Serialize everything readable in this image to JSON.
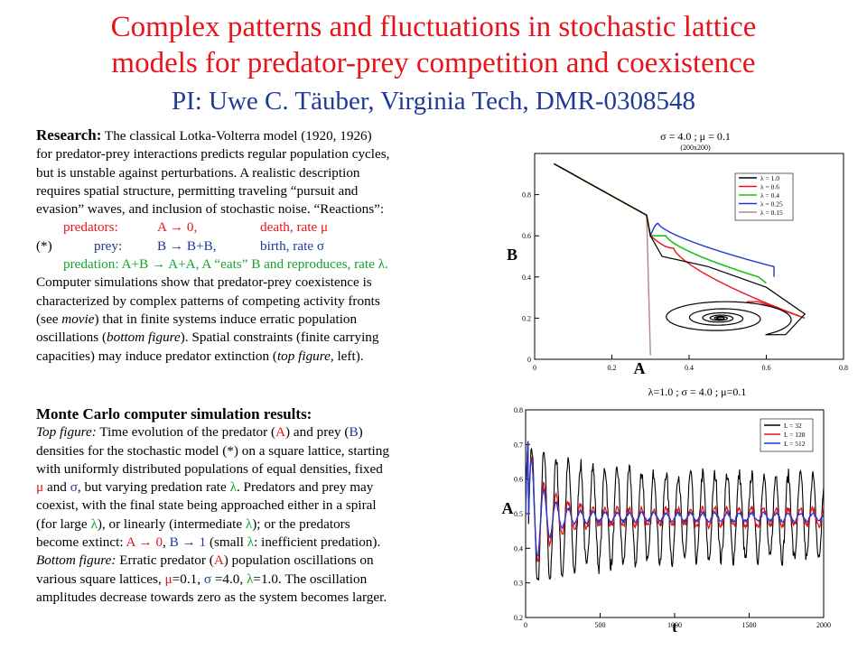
{
  "title": {
    "line1": "Complex patterns and fluctuations in stochastic lattice",
    "line2": "models for predator-prey competition and coexistence",
    "pi": "PI: Uwe C. Täuber, Virginia Tech, DMR-0308548"
  },
  "research": {
    "heading": "Research:",
    "lines": [
      "The classical Lotka-Volterra model (1920, 1926)",
      "for predator-prey interactions predicts regular population cycles,",
      "but is unstable against perturbations. A realistic description",
      "requires spatial structure, permitting traveling “pursuit and",
      "evasion” waves, and inclusion of stochastic noise. “Reactions”:"
    ],
    "reactions": {
      "r1_label": "predators:",
      "r1_eq": "A → 0,",
      "r1_desc": "death, rate μ",
      "r2_marker": "(*)",
      "r2_label": "prey:",
      "r2_eq": "B → B+B,",
      "r2_desc": "birth, rate σ",
      "r3_label": "predation:",
      "r3_eq": "A+B → A+A,",
      "r3_desc_a": "A “eats” B and ",
      "r3_desc_b": "reproduces",
      "r3_desc_c": ", rate λ."
    },
    "after": [
      "Computer simulations show that predator-prey coexistence is",
      "characterized by complex patterns of competing activity fronts"
    ],
    "see_a": "(see ",
    "see_movie": "movie",
    "see_b": ") that in finite systems induce erratic population",
    "osc_a": "oscillations (",
    "osc_fig": "bottom figure",
    "osc_b": "). Spatial constraints (finite carrying",
    "cap_a": "capacities) may induce predator extinction (",
    "cap_fig": "top figure,",
    "cap_b": " left)."
  },
  "mc": {
    "heading": "Monte Carlo computer simulation results:",
    "top_label": "Top figure:",
    "l1_a": " Time evolution of the predator (",
    "A": "A",
    "l1_b": ") and prey (",
    "B": "B",
    "l1_c": ")",
    "l2": "densities for the stochastic model (*) on a square lattice, starting",
    "l3": "with uniformly distributed populations of equal densities, fixed",
    "mu": "μ",
    "l4_a": " and ",
    "sigma": "σ",
    "l4_b": ", but varying predation rate ",
    "lam": "λ",
    "l4_c": ". Predators and prey may",
    "l5": "coexist, with the final state being approached either in a spiral",
    "l6_a": "(for large ",
    "l6_b": "),  or linearly (intermediate ",
    "l6_c": "); or the predators",
    "l7_a": "become extinct: ",
    "l7_b": "A → 0",
    "l7_c": ", ",
    "l7_d": "B → 1",
    "l7_e": " (small ",
    "l7_f": ": inefficient predation).",
    "bottom_label": "Bottom figure:",
    "l8_a": " Erratic predator (",
    "l8_b": ") population oscillations on",
    "l9_a": "various square lattices, ",
    "l9_mu": "μ",
    "l9_b": "=0.1, ",
    "l9_sigma": "σ",
    "l9_c": " =4.0, ",
    "l9_lam": "λ",
    "l9_d": "=1.0. The oscillation",
    "l10": "amplitudes decrease towards zero as the system becomes larger."
  },
  "chart_data": [
    {
      "type": "line",
      "title": "σ = 4.0 ; μ = 0.1",
      "subtitle": "(200x200)",
      "xlabel": "A",
      "ylabel": "B",
      "xlim": [
        0,
        0.8
      ],
      "ylim": [
        0,
        1.0
      ],
      "xticks": [
        "0",
        "0.2",
        "0.4",
        "0.6",
        "0.8"
      ],
      "yticks": [
        "0",
        "0.2",
        "0.4",
        "0.6",
        "0.8"
      ],
      "legend_position": "top-right",
      "series": [
        {
          "name": "λ = 1.0",
          "color": "#000000"
        },
        {
          "name": "λ = 0.6",
          "color": "#e8141b"
        },
        {
          "name": "λ = 0.4",
          "color": "#17c417"
        },
        {
          "name": "λ = 0.25",
          "color": "#1f3acc"
        },
        {
          "name": "λ = 0.15",
          "color": "#b08a80"
        }
      ]
    },
    {
      "type": "line",
      "title": "λ=1.0 ; σ = 4.0 ; μ=0.1",
      "xlabel": "t",
      "ylabel": "A",
      "xlim": [
        0,
        2000
      ],
      "ylim": [
        0.2,
        0.8
      ],
      "xticks": [
        "0",
        "500",
        "1000",
        "1500",
        "2000"
      ],
      "yticks": [
        "0.2",
        "0.3",
        "0.4",
        "0.5",
        "0.6",
        "0.7",
        "0.8"
      ],
      "legend_position": "top-right",
      "series": [
        {
          "name": "L = 32",
          "color": "#000000"
        },
        {
          "name": "L = 128",
          "color": "#e8141b"
        },
        {
          "name": "L = 512",
          "color": "#1f3acc"
        }
      ]
    }
  ]
}
